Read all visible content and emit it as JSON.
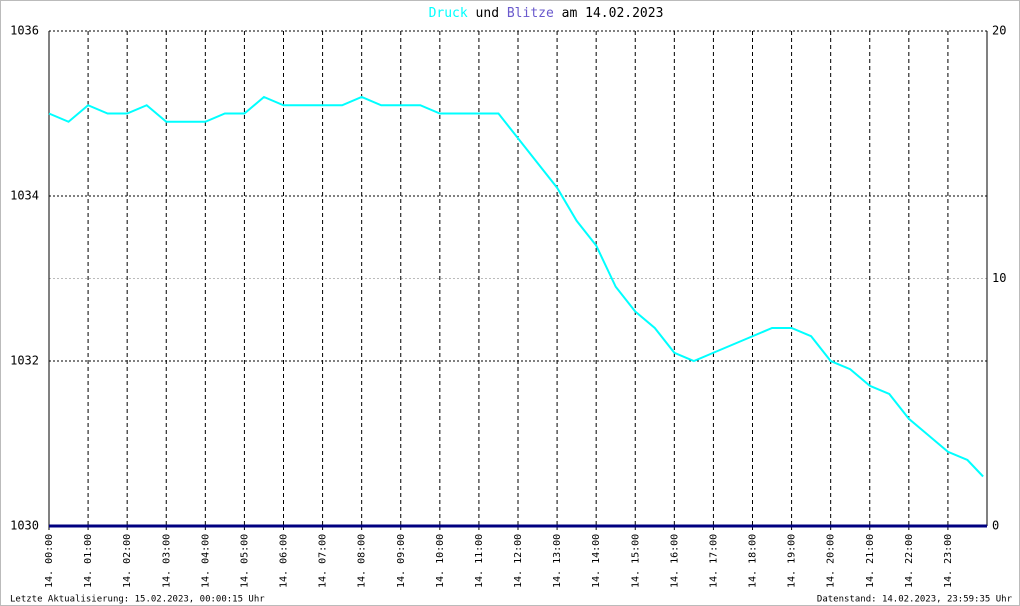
{
  "chart_data": {
    "type": "line",
    "title_join": "und",
    "title_date": "am 14.02.2023",
    "xlim": [
      0,
      24
    ],
    "xticks": [
      {
        "value": 0,
        "label": "14. 00:00"
      },
      {
        "value": 1,
        "label": "14. 01:00"
      },
      {
        "value": 2,
        "label": "14. 02:00"
      },
      {
        "value": 3,
        "label": "14. 03:00"
      },
      {
        "value": 4,
        "label": "14. 04:00"
      },
      {
        "value": 5,
        "label": "14. 05:00"
      },
      {
        "value": 6,
        "label": "14. 06:00"
      },
      {
        "value": 7,
        "label": "14. 07:00"
      },
      {
        "value": 8,
        "label": "14. 08:00"
      },
      {
        "value": 9,
        "label": "14. 09:00"
      },
      {
        "value": 10,
        "label": "14. 10:00"
      },
      {
        "value": 11,
        "label": "14. 11:00"
      },
      {
        "value": 12,
        "label": "14. 12:00"
      },
      {
        "value": 13,
        "label": "14. 13:00"
      },
      {
        "value": 14,
        "label": "14. 14:00"
      },
      {
        "value": 15,
        "label": "14. 15:00"
      },
      {
        "value": 16,
        "label": "14. 16:00"
      },
      {
        "value": 17,
        "label": "14. 17:00"
      },
      {
        "value": 18,
        "label": "14. 18:00"
      },
      {
        "value": 19,
        "label": "14. 19:00"
      },
      {
        "value": 20,
        "label": "14. 20:00"
      },
      {
        "value": 21,
        "label": "14. 21:00"
      },
      {
        "value": 22,
        "label": "14. 22:00"
      },
      {
        "value": 23,
        "label": "14. 23:00"
      }
    ],
    "ylim": [
      1030,
      1036
    ],
    "yticks": [
      1030,
      1032,
      1034,
      1036
    ],
    "y2lim": [
      0,
      20
    ],
    "y2ticks": [
      0,
      10,
      20
    ],
    "grid": true,
    "series": [
      {
        "name": "Druck",
        "color": "#00ffff",
        "x": [
          0,
          0.5,
          1,
          1.5,
          2,
          2.5,
          3,
          3.5,
          4,
          4.5,
          5,
          5.5,
          6,
          6.5,
          7,
          7.5,
          8,
          8.5,
          9,
          9.5,
          10,
          10.5,
          11,
          11.5,
          12,
          12.5,
          13,
          13.5,
          14,
          14.5,
          15,
          15.5,
          16,
          16.5,
          17,
          17.5,
          18,
          18.5,
          19,
          19.5,
          20,
          20.5,
          21,
          21.5,
          22,
          22.5,
          23,
          23.5,
          23.9
        ],
        "values": [
          1035.0,
          1034.9,
          1035.1,
          1035.0,
          1035.0,
          1035.1,
          1034.9,
          1034.9,
          1034.9,
          1035.0,
          1035.0,
          1035.2,
          1035.1,
          1035.1,
          1035.1,
          1035.1,
          1035.2,
          1035.1,
          1035.1,
          1035.1,
          1035.0,
          1035.0,
          1035.0,
          1035.0,
          1034.7,
          1034.4,
          1034.1,
          1033.7,
          1033.4,
          1032.9,
          1032.6,
          1032.4,
          1032.1,
          1032.0,
          1032.1,
          1032.2,
          1032.3,
          1032.4,
          1032.4,
          1032.3,
          1032.0,
          1031.9,
          1031.7,
          1031.6,
          1031.3,
          1031.1,
          1030.9,
          1030.8,
          1030.6
        ]
      },
      {
        "name": "Blitze",
        "color": "#6a5acd",
        "line_color": "#000080",
        "axis": "y2",
        "x": [
          0,
          24
        ],
        "values": [
          0,
          0
        ]
      }
    ],
    "footer_left": "Letzte Aktualisierung: 15.02.2023, 00:00:15 Uhr",
    "footer_right": "Datenstand: 14.02.2023, 23:59:35 Uhr"
  }
}
